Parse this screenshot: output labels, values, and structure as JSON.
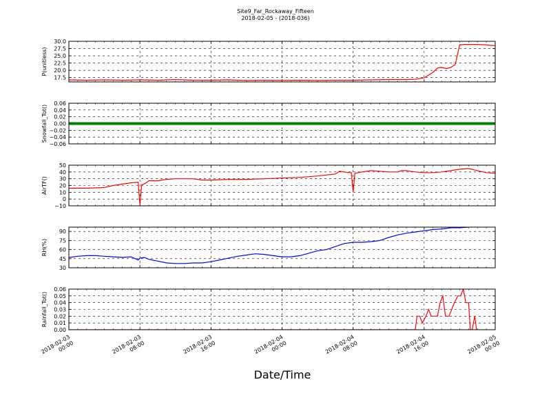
{
  "figure": {
    "title_line1": "Site9_Far_Rockaway_Fifteen",
    "title_line2": "2018-02-05 - (2018-036)",
    "xlabel": "Date/Time"
  },
  "chart_data": [
    {
      "type": "line",
      "ylabel": "P(unitless)",
      "ylim": [
        16.0,
        30.0
      ],
      "yticks": [
        "17.5",
        "20.0",
        "22.5",
        "25.0",
        "27.5",
        "30.0"
      ],
      "grid": true,
      "color": "#ff0000",
      "x_hours": [
        0,
        2,
        4,
        6,
        8,
        10,
        12,
        14,
        16,
        18,
        20,
        22,
        24,
        26,
        28,
        30,
        32,
        34,
        36,
        38,
        39,
        40,
        41,
        41.5,
        42,
        42.5,
        43,
        43.5,
        44,
        44.5,
        45,
        46,
        47,
        47.5,
        48
      ],
      "values": [
        16.7,
        16.6,
        16.7,
        16.6,
        16.7,
        16.6,
        16.8,
        16.6,
        16.6,
        16.7,
        16.5,
        16.6,
        16.5,
        16.6,
        16.5,
        16.6,
        16.6,
        16.7,
        16.8,
        16.8,
        16.9,
        17.4,
        19.3,
        20.8,
        21.0,
        20.6,
        21.0,
        22.0,
        28.8,
        28.9,
        28.9,
        28.9,
        28.8,
        28.6,
        28.5
      ]
    },
    {
      "type": "line",
      "ylabel": "Snowfall_Tot()",
      "ylim": [
        -0.06,
        0.06
      ],
      "yticks": [
        "−0.06",
        "−0.04",
        "−0.02",
        "0.00",
        "0.02",
        "0.04",
        "0.06"
      ],
      "grid": true,
      "color": "#008000",
      "x_hours": [
        0,
        48
      ],
      "values": [
        0,
        0
      ]
    },
    {
      "type": "line",
      "ylabel": "AirTF()",
      "ylim": [
        -10,
        50
      ],
      "yticks": [
        "−10",
        "0",
        "10",
        "20",
        "30",
        "40",
        "50"
      ],
      "grid": true,
      "color": "#ff0000",
      "x_hours": [
        0,
        2,
        4,
        5,
        6,
        7,
        7.8,
        8.0,
        8.2,
        8.6,
        9,
        10,
        11,
        12,
        14,
        15,
        16,
        18,
        20,
        22,
        24,
        26,
        28,
        30,
        30.5,
        31.5,
        31.8,
        32.0,
        32.2,
        33,
        34,
        35,
        36,
        37,
        37.5,
        38,
        39,
        40,
        41,
        42,
        43,
        44,
        45,
        46,
        47,
        48
      ],
      "values": [
        16,
        16,
        17,
        20,
        22,
        24,
        25,
        -9,
        21,
        23,
        27,
        27,
        29,
        30,
        30,
        28,
        28,
        29,
        29,
        30,
        31,
        32,
        34,
        37,
        41,
        39,
        39,
        10,
        38,
        40,
        42,
        41,
        40,
        40,
        42,
        42,
        40,
        39,
        39,
        40,
        42,
        44,
        45,
        42,
        39,
        38
      ]
    },
    {
      "type": "line",
      "ylabel": "RH(%)",
      "ylim": [
        30,
        97
      ],
      "yticks": [
        "30",
        "45",
        "60",
        "75",
        "90"
      ],
      "grid": true,
      "color": "#0000ff",
      "x_hours": [
        0,
        1,
        2,
        3,
        4,
        5,
        6,
        7,
        7.8,
        8,
        8.5,
        9,
        10,
        11,
        12,
        13,
        14,
        15,
        16,
        17,
        18,
        19,
        20,
        21,
        22,
        23,
        24,
        25,
        26,
        27,
        28,
        29,
        30,
        31,
        32,
        33,
        34,
        35,
        36,
        37,
        38,
        39,
        40,
        41,
        42,
        43,
        44,
        45
      ],
      "values": [
        47,
        49,
        50,
        50,
        49,
        48,
        47,
        48,
        43,
        46,
        47,
        44,
        41,
        38,
        37,
        37,
        38,
        38,
        40,
        43,
        46,
        49,
        51,
        53,
        52,
        50,
        48,
        48,
        50,
        54,
        58,
        60,
        65,
        70,
        72,
        72,
        73,
        75,
        80,
        84,
        87,
        89,
        91,
        93,
        94,
        96,
        96,
        97
      ]
    },
    {
      "type": "line",
      "ylabel": "Rainfall_Tot()",
      "ylim": [
        0,
        0.06
      ],
      "yticks": [
        "0.00",
        "0.01",
        "0.02",
        "0.03",
        "0.04",
        "0.05",
        "0.06"
      ],
      "grid": true,
      "color": "#ff0000",
      "x_hours": [
        0,
        39.0,
        39.2,
        39.5,
        39.8,
        40.2,
        40.5,
        40.8,
        41.2,
        41.5,
        41.8,
        42.1,
        42.4,
        42.8,
        43.1,
        43.4,
        43.8,
        44.1,
        44.4,
        44.7,
        45.0,
        45.2,
        45.4,
        45.7,
        45.9
      ],
      "values": [
        0,
        0,
        0.02,
        0.02,
        0.01,
        0.02,
        0.03,
        0.02,
        0.02,
        0.02,
        0.04,
        0.05,
        0.02,
        0.02,
        0.03,
        0.04,
        0.05,
        0.05,
        0.06,
        0.04,
        0.04,
        0.0,
        0.0,
        0.02,
        0.0
      ]
    }
  ],
  "x_axis": {
    "range_hours": [
      0,
      48
    ],
    "ticks": [
      {
        "hour": 0,
        "line1": "2018-02-03",
        "line2": "00:00"
      },
      {
        "hour": 8,
        "line1": "2018-02-03",
        "line2": "08:00"
      },
      {
        "hour": 16,
        "line1": "2018-02-03",
        "line2": "16:00"
      },
      {
        "hour": 24,
        "line1": "2018-02-04",
        "line2": "00:00"
      },
      {
        "hour": 32,
        "line1": "2018-02-04",
        "line2": "08:00"
      },
      {
        "hour": 40,
        "line1": "2018-02-04",
        "line2": "16:00"
      },
      {
        "hour": 48,
        "line1": "2018-02-05",
        "line2": "00:00"
      }
    ]
  }
}
